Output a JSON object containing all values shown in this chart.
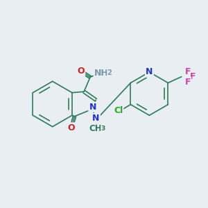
{
  "bg_color": "#e8eef2",
  "atom_colors": {
    "C": "#2d7a5a",
    "N": "#2233cc",
    "O": "#cc2222",
    "F": "#cc44aa",
    "Cl": "#22aa22",
    "H": "#7a9aaa"
  },
  "bond_color": "#2d7a5a",
  "font_size_atom": 9,
  "font_size_small": 7.5
}
